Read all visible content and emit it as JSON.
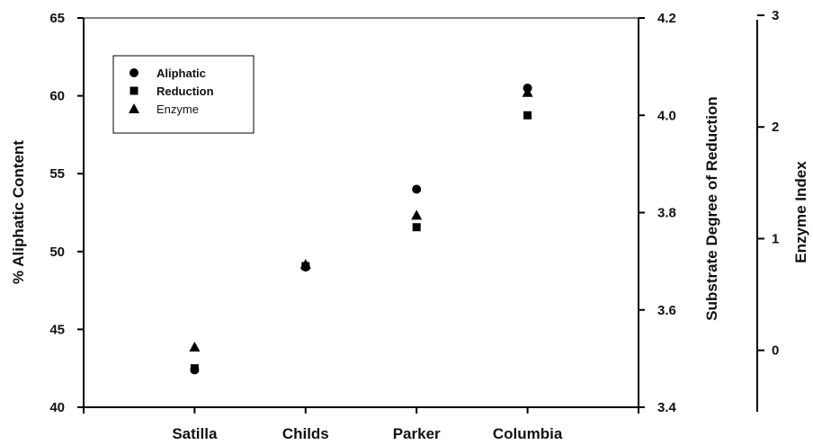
{
  "chart_data": {
    "type": "scatter",
    "categories": [
      "Satilla",
      "Childs",
      "Parker",
      "Columbia"
    ],
    "series": [
      {
        "name": "Aliphatic",
        "axis": "left",
        "marker": "circle",
        "values": [
          42.4,
          49.0,
          54.0,
          60.5
        ]
      },
      {
        "name": "Reduction",
        "axis": "right1",
        "marker": "square",
        "values": [
          3.48,
          3.69,
          3.77,
          4.0
        ]
      },
      {
        "name": "Enzyme",
        "axis": "right2",
        "marker": "triangle",
        "values": [
          0.03,
          0.77,
          1.21,
          2.31
        ]
      }
    ],
    "axes": {
      "left": {
        "label": "% Aliphatic Content",
        "ylim": [
          40,
          65
        ],
        "ticks": [
          "40",
          "45",
          "50",
          "55",
          "60",
          "65"
        ]
      },
      "right1": {
        "label": "Substrate Degree of Reduction",
        "ylim": [
          3.4,
          4.2
        ],
        "ticks": [
          "3.4",
          "3.6",
          "3.8",
          "4.0",
          "4.2"
        ]
      },
      "right2": {
        "label": "Enzyme Index",
        "ylim": [
          -0.55,
          2.96
        ],
        "ticks": [
          "0",
          "1",
          "2",
          "3"
        ]
      }
    },
    "legend": {
      "placement": "top-left",
      "entries": [
        {
          "label": "Aliphatic",
          "marker": "circle",
          "bold": true
        },
        {
          "label": "Reduction",
          "marker": "square",
          "bold": true
        },
        {
          "label": "Enzyme",
          "marker": "triangle",
          "bold": false
        }
      ]
    },
    "grid": false,
    "colors": {
      "marker": "#000000",
      "axis": "#000000"
    }
  }
}
